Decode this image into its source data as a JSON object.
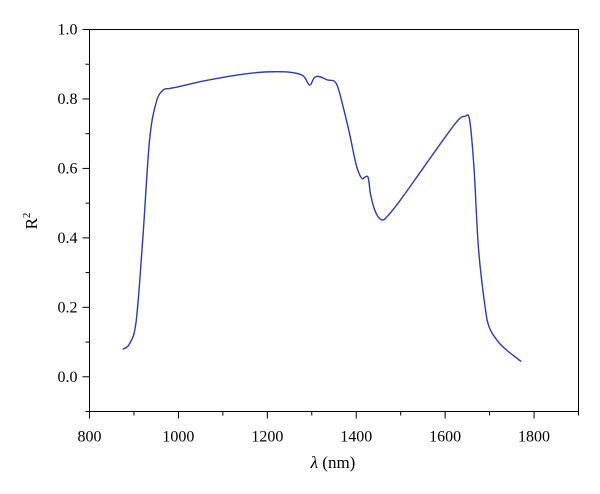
{
  "chart_data": {
    "type": "line",
    "title": "",
    "xlabel": {
      "symbol": "λ",
      "unit": " (nm)"
    },
    "ylabel": {
      "base": "R",
      "superscript": "2"
    },
    "xlim": [
      800,
      1900
    ],
    "ylim": [
      -0.1,
      1.0
    ],
    "xticks": [
      800,
      1000,
      1200,
      1400,
      1600,
      1800
    ],
    "xtick_labels": [
      "800",
      "1000",
      "1200",
      "1400",
      "1600",
      "1800"
    ],
    "yticks": [
      0.0,
      0.2,
      0.4,
      0.6,
      0.8,
      1.0
    ],
    "ytick_labels": [
      "0.0",
      "0.2",
      "0.4",
      "0.6",
      "0.8",
      "1.0"
    ],
    "grid": false,
    "line_color": "#2b3f9f",
    "series": [
      {
        "points": [
          [
            876,
            0.08
          ],
          [
            890,
            0.095
          ],
          [
            905,
            0.16
          ],
          [
            920,
            0.4
          ],
          [
            935,
            0.68
          ],
          [
            950,
            0.79
          ],
          [
            965,
            0.825
          ],
          [
            980,
            0.83
          ],
          [
            1000,
            0.835
          ],
          [
            1050,
            0.85
          ],
          [
            1100,
            0.862
          ],
          [
            1150,
            0.872
          ],
          [
            1200,
            0.878
          ],
          [
            1250,
            0.877
          ],
          [
            1280,
            0.867
          ],
          [
            1295,
            0.84
          ],
          [
            1305,
            0.86
          ],
          [
            1315,
            0.865
          ],
          [
            1335,
            0.855
          ],
          [
            1355,
            0.845
          ],
          [
            1370,
            0.78
          ],
          [
            1385,
            0.7
          ],
          [
            1400,
            0.61
          ],
          [
            1412,
            0.572
          ],
          [
            1420,
            0.575
          ],
          [
            1427,
            0.573
          ],
          [
            1433,
            0.52
          ],
          [
            1445,
            0.47
          ],
          [
            1458,
            0.452
          ],
          [
            1470,
            0.462
          ],
          [
            1500,
            0.51
          ],
          [
            1550,
            0.6
          ],
          [
            1600,
            0.69
          ],
          [
            1630,
            0.74
          ],
          [
            1645,
            0.75
          ],
          [
            1655,
            0.74
          ],
          [
            1665,
            0.6
          ],
          [
            1675,
            0.37
          ],
          [
            1690,
            0.2
          ],
          [
            1700,
            0.14
          ],
          [
            1720,
            0.1
          ],
          [
            1740,
            0.075
          ],
          [
            1760,
            0.055
          ],
          [
            1770,
            0.045
          ]
        ]
      }
    ]
  }
}
